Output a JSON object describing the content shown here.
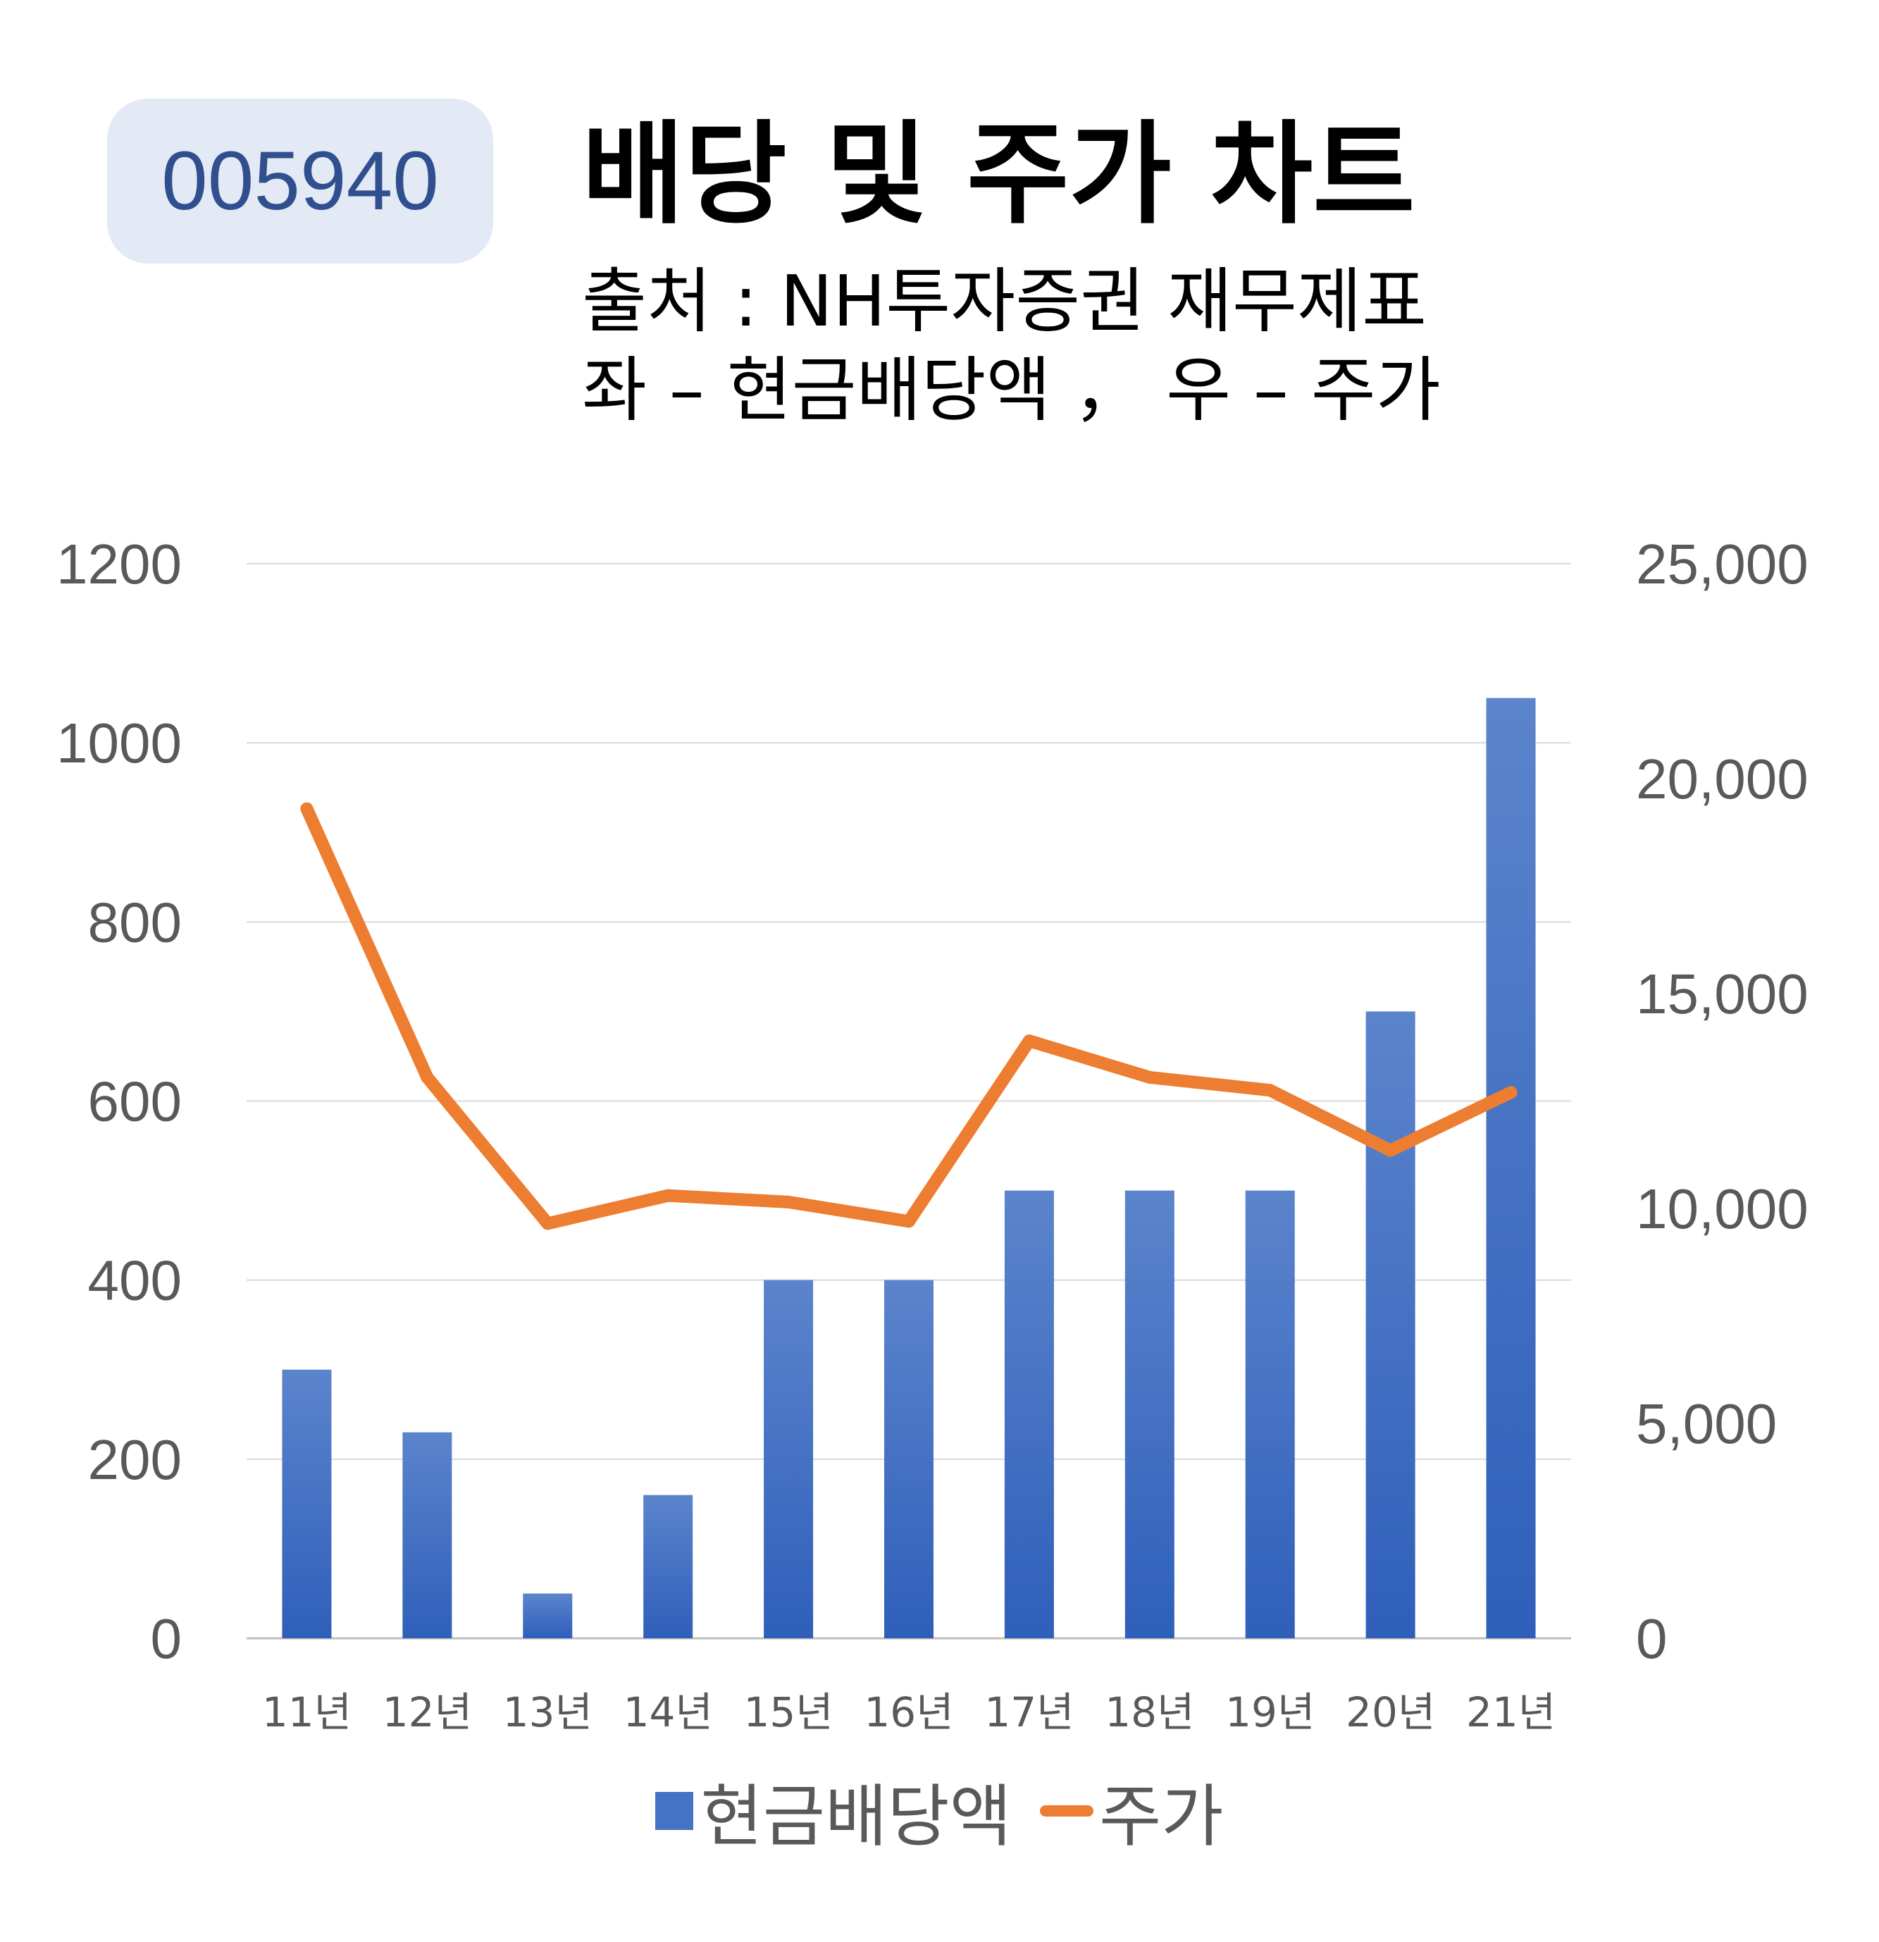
{
  "header": {
    "ticker": "005940",
    "title": "배당 및 주가 차트",
    "subtitle_line1": "출처 : NH투자증권 재무제표",
    "subtitle_line2": "좌 – 현금배당액 ， 우 – 주가"
  },
  "chart_data": {
    "type": "bar",
    "categories": [
      "11년",
      "12년",
      "13년",
      "14년",
      "15년",
      "16년",
      "17년",
      "18년",
      "19년",
      "20년",
      "21년"
    ],
    "series": [
      {
        "name": "현금배당액",
        "type": "bar",
        "axis": "left",
        "color": "#4472c4",
        "values": [
          300,
          230,
          50,
          160,
          400,
          400,
          500,
          500,
          500,
          700,
          1050
        ]
      },
      {
        "name": "주가",
        "type": "line",
        "axis": "right",
        "color": "#ed7d31",
        "values": [
          19300,
          13050,
          9650,
          10300,
          10150,
          9700,
          13900,
          13050,
          12750,
          11350,
          12700
        ]
      }
    ],
    "y_left": {
      "ylim": [
        0,
        1200
      ],
      "ticks": [
        "0",
        "200",
        "400",
        "600",
        "800",
        "1000",
        "1200"
      ]
    },
    "y_right": {
      "ylim": [
        0,
        25000
      ],
      "ticks": [
        "0",
        "5,000",
        "10,000",
        "15,000",
        "20,000",
        "25,000"
      ]
    },
    "grid": true,
    "legend": "bottom"
  }
}
